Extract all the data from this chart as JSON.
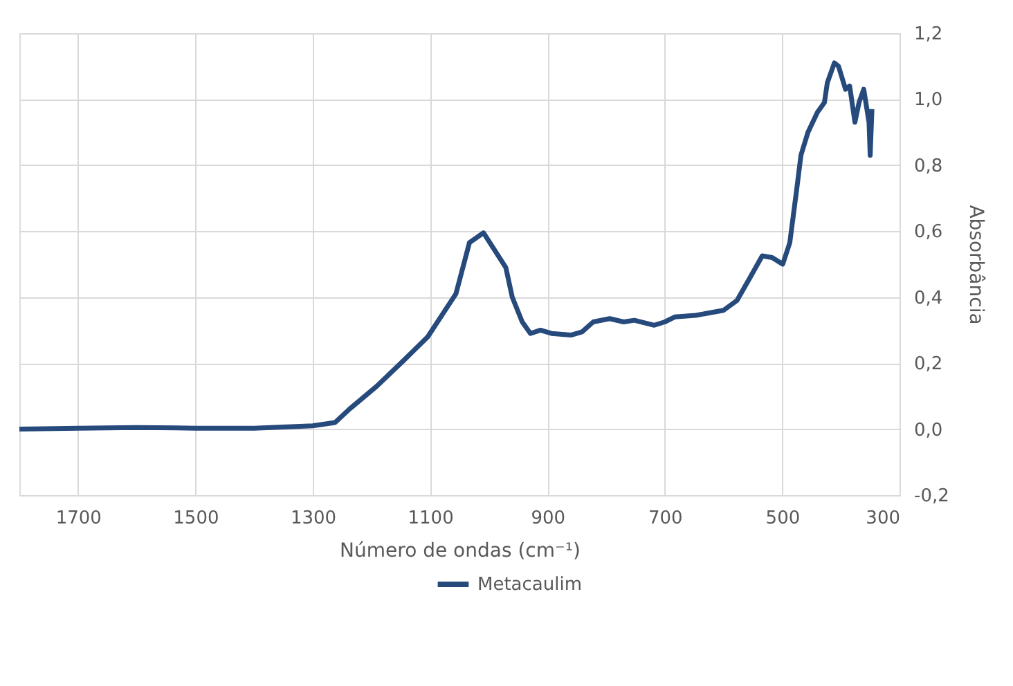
{
  "chart_data": {
    "type": "line",
    "xlabel": "Número de ondas (cm⁻¹)",
    "ylabel": "Absorbância",
    "xlim": [
      1800,
      300
    ],
    "xticks": [
      1700,
      1500,
      1300,
      1100,
      900,
      700,
      500,
      300
    ],
    "ylim": [
      -0.2,
      1.2
    ],
    "yticks": [
      {
        "value": -0.2,
        "label": "-0,2"
      },
      {
        "value": 0,
        "label": "0,0"
      },
      {
        "value": 0.2,
        "label": "0,2"
      },
      {
        "value": 0.4,
        "label": "0,4"
      },
      {
        "value": 0.6,
        "label": "0,6"
      },
      {
        "value": 0.8,
        "label": "0,8"
      },
      {
        "value": 1.0,
        "label": "1,0"
      },
      {
        "value": 1.2,
        "label": "1,2"
      }
    ],
    "grid": true,
    "legend": "bottom",
    "marker": "none",
    "line_style": "solid",
    "x": [
      1800,
      1700,
      1600,
      1500,
      1400,
      1300,
      1262,
      1238,
      1191,
      1144,
      1104,
      1056,
      1033,
      1009,
      971,
      960,
      943,
      929,
      912,
      893,
      860,
      841,
      822,
      794,
      770,
      752,
      718,
      700,
      683,
      647,
      600,
      577,
      553,
      534,
      517,
      499,
      487,
      475,
      468,
      456,
      440,
      428,
      423,
      411,
      404,
      392,
      385,
      376,
      369,
      361,
      352,
      350,
      347
    ],
    "series": [
      {
        "name": "Metacaulim",
        "color": "#264a7c",
        "values": [
          0.0,
          0.003,
          0.005,
          0.003,
          0.003,
          0.01,
          0.02,
          0.06,
          0.13,
          0.21,
          0.28,
          0.41,
          0.565,
          0.595,
          0.49,
          0.4,
          0.325,
          0.29,
          0.3,
          0.29,
          0.285,
          0.295,
          0.325,
          0.335,
          0.325,
          0.33,
          0.315,
          0.325,
          0.34,
          0.345,
          0.36,
          0.39,
          0.465,
          0.525,
          0.52,
          0.5,
          0.565,
          0.73,
          0.83,
          0.9,
          0.96,
          0.99,
          1.05,
          1.11,
          1.1,
          1.03,
          1.04,
          0.93,
          0.99,
          1.03,
          0.93,
          0.83,
          0.97
        ]
      }
    ]
  }
}
